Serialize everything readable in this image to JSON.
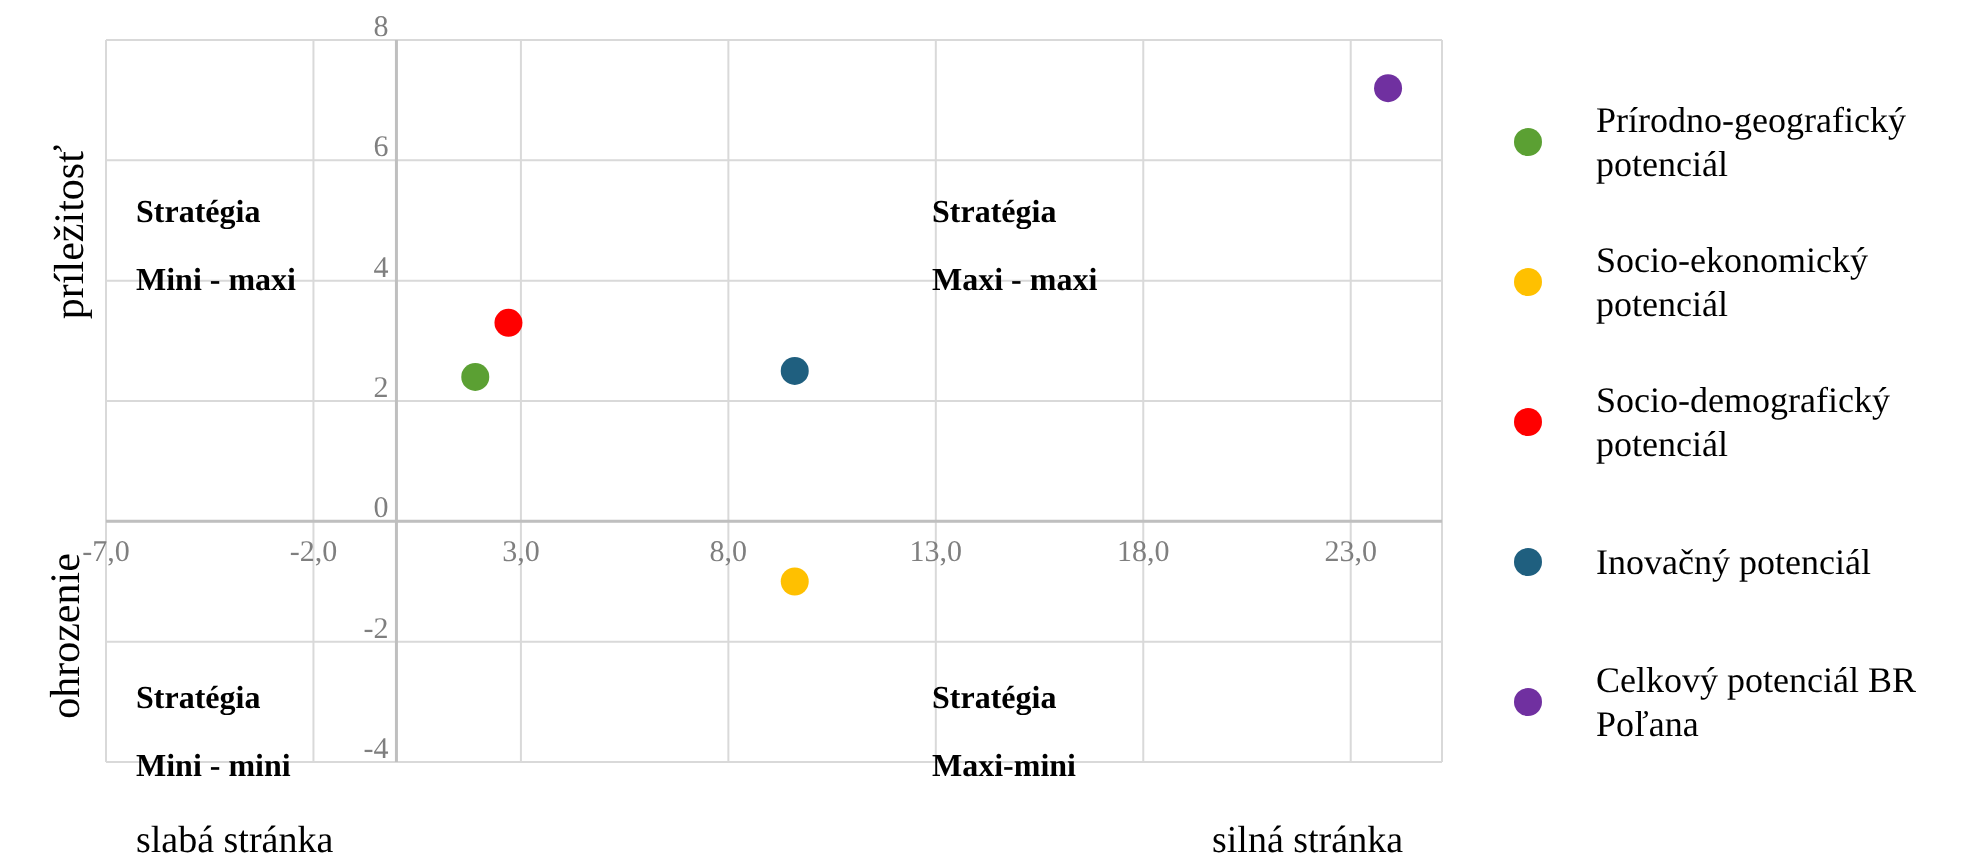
{
  "chart_data": {
    "type": "scatter",
    "ylabel": "príležitosť",
    "annotations": [
      "Stratégia Mini - maxi",
      "Stratégia Maxi - maxi",
      "Stratégia Mini - mini",
      "Stratégia Maxi-mini",
      "ohrozenie",
      "slabá stránka",
      "silná stránka"
    ],
    "series": [
      {
        "name": "Prírodno-geografický potenciál",
        "color": "#5ba033",
        "x": [
          1.9
        ],
        "values": [
          2.4
        ]
      },
      {
        "name": "Socio-ekonomický potenciál",
        "color": "#ffc000",
        "x": [
          9.6
        ],
        "values": [
          -1.0
        ]
      },
      {
        "name": "Socio-demografický potenciál",
        "color": "#ff0000",
        "x": [
          2.7
        ],
        "values": [
          3.3
        ]
      },
      {
        "name": "Inovačný potenciál",
        "color": "#1f5f7f",
        "x": [
          9.6
        ],
        "values": [
          2.5
        ]
      },
      {
        "name": "Celkový potenciál BR Poľana",
        "color": "#7030a0",
        "x": [
          23.9
        ],
        "values": [
          7.2
        ]
      }
    ],
    "xlim": [
      -7,
      25.2
    ],
    "xticks": [
      {
        "value": -7,
        "label": "-7,0"
      },
      {
        "value": -2,
        "label": "-2,0"
      },
      {
        "value": 3,
        "label": "3,0"
      },
      {
        "value": 8,
        "label": "8,0"
      },
      {
        "value": 13,
        "label": "13,0"
      },
      {
        "value": 18,
        "label": "18,0"
      },
      {
        "value": 23,
        "label": "23,0"
      }
    ],
    "ylim": [
      -4,
      8
    ],
    "yticks": [
      -4,
      -2,
      0,
      2,
      4,
      6,
      8
    ],
    "grid": true,
    "legend": "right",
    "marker": "circle"
  }
}
